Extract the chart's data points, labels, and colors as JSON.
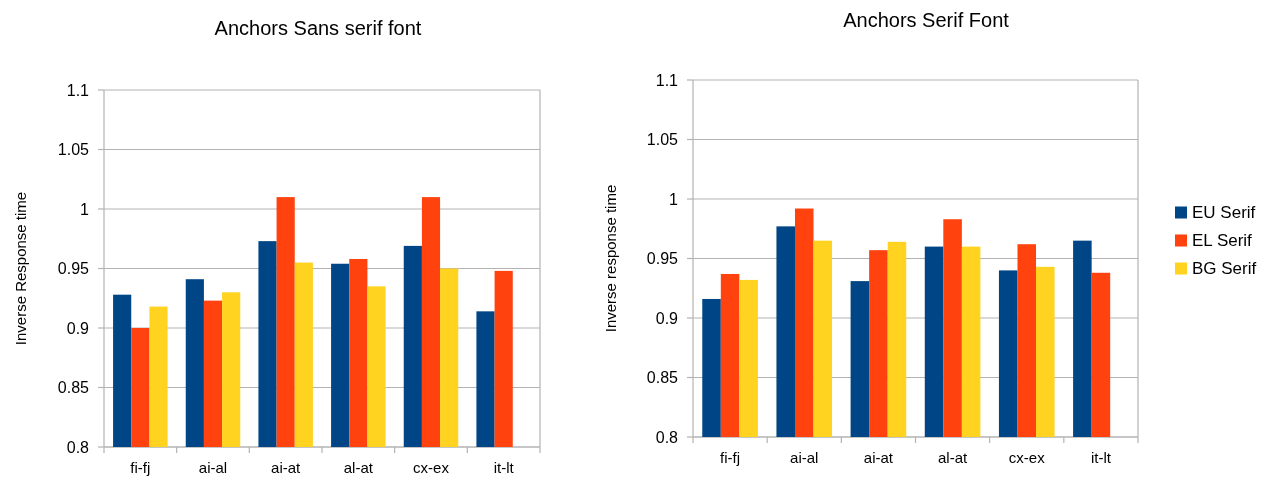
{
  "chart_data": [
    {
      "type": "bar",
      "title": "Anchors Sans serif font",
      "ylabel": "Inverse Response time",
      "categories": [
        "fi-fj",
        "ai-al",
        "ai-at",
        "al-at",
        "cx-ex",
        "it-lt"
      ],
      "series": [
        {
          "color": "#004586",
          "values": [
            0.928,
            0.941,
            0.973,
            0.954,
            0.969,
            0.914
          ]
        },
        {
          "color": "#ff420e",
          "values": [
            0.9,
            0.923,
            1.01,
            0.958,
            1.01,
            0.948
          ]
        },
        {
          "color": "#ffd320",
          "values": [
            0.918,
            0.93,
            0.955,
            0.935,
            0.95,
            null
          ]
        }
      ],
      "ylim": [
        0.8,
        1.1
      ],
      "yticks": [
        0.8,
        0.85,
        0.9,
        0.95,
        1,
        1.05,
        1.1
      ],
      "grid": "y",
      "legend": false
    },
    {
      "type": "bar",
      "title": "Anchors Serif Font",
      "ylabel": "Inverse response time",
      "categories": [
        "fi-fj",
        "ai-al",
        "ai-at",
        "al-at",
        "cx-ex",
        "it-lt"
      ],
      "series": [
        {
          "name": "EU Serif",
          "color": "#004586",
          "values": [
            0.916,
            0.977,
            0.931,
            0.96,
            0.94,
            0.965
          ]
        },
        {
          "name": "EL Serif",
          "color": "#ff420e",
          "values": [
            0.937,
            0.992,
            0.957,
            0.983,
            0.962,
            0.938
          ]
        },
        {
          "name": "BG Serif",
          "color": "#ffd320",
          "values": [
            0.932,
            0.965,
            0.964,
            0.96,
            0.943,
            null
          ]
        }
      ],
      "ylim": [
        0.8,
        1.1
      ],
      "yticks": [
        0.8,
        0.85,
        0.9,
        0.95,
        1,
        1.05,
        1.1
      ],
      "grid": "y",
      "legend": "right"
    }
  ]
}
